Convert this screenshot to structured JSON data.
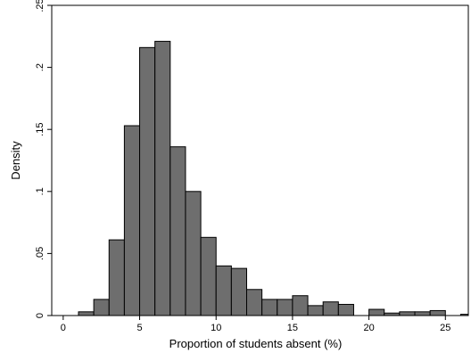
{
  "chart_data": {
    "type": "histogram",
    "xlabel": "Proportion of students absent (%)",
    "ylabel": "Density",
    "xlim": [
      -0.75,
      26.5
    ],
    "ylim": [
      0,
      0.25
    ],
    "x_ticks": [
      0,
      5,
      10,
      15,
      20,
      25
    ],
    "x_tick_labels": [
      "0",
      "5",
      "10",
      "15",
      "20",
      "25"
    ],
    "y_ticks": [
      0,
      0.05,
      0.1,
      0.15,
      0.2,
      0.25
    ],
    "y_tick_labels": [
      "0",
      ".05",
      ".1",
      ".15",
      ".2",
      ".25"
    ],
    "grid": false,
    "legend": "none",
    "bar_color": "#6e6e6e",
    "bar_edge_color": "#000000",
    "bin_width": 1,
    "bins": [
      {
        "start": 1,
        "end": 2,
        "density": 0.003
      },
      {
        "start": 2,
        "end": 3,
        "density": 0.013
      },
      {
        "start": 3,
        "end": 4,
        "density": 0.061
      },
      {
        "start": 4,
        "end": 5,
        "density": 0.153
      },
      {
        "start": 5,
        "end": 6,
        "density": 0.216
      },
      {
        "start": 6,
        "end": 7,
        "density": 0.221
      },
      {
        "start": 7,
        "end": 8,
        "density": 0.136
      },
      {
        "start": 8,
        "end": 9,
        "density": 0.1
      },
      {
        "start": 9,
        "end": 10,
        "density": 0.063
      },
      {
        "start": 10,
        "end": 11,
        "density": 0.04
      },
      {
        "start": 11,
        "end": 12,
        "density": 0.038
      },
      {
        "start": 12,
        "end": 13,
        "density": 0.021
      },
      {
        "start": 13,
        "end": 14,
        "density": 0.013
      },
      {
        "start": 14,
        "end": 15,
        "density": 0.013
      },
      {
        "start": 15,
        "end": 16,
        "density": 0.016
      },
      {
        "start": 16,
        "end": 17,
        "density": 0.008
      },
      {
        "start": 17,
        "end": 18,
        "density": 0.011
      },
      {
        "start": 18,
        "end": 19,
        "density": 0.009
      },
      {
        "start": 20,
        "end": 21,
        "density": 0.005
      },
      {
        "start": 21,
        "end": 22,
        "density": 0.002
      },
      {
        "start": 22,
        "end": 23,
        "density": 0.003
      },
      {
        "start": 23,
        "end": 24,
        "density": 0.003
      },
      {
        "start": 24,
        "end": 25,
        "density": 0.004
      },
      {
        "start": 26,
        "end": 27,
        "density": 0.001
      }
    ]
  }
}
